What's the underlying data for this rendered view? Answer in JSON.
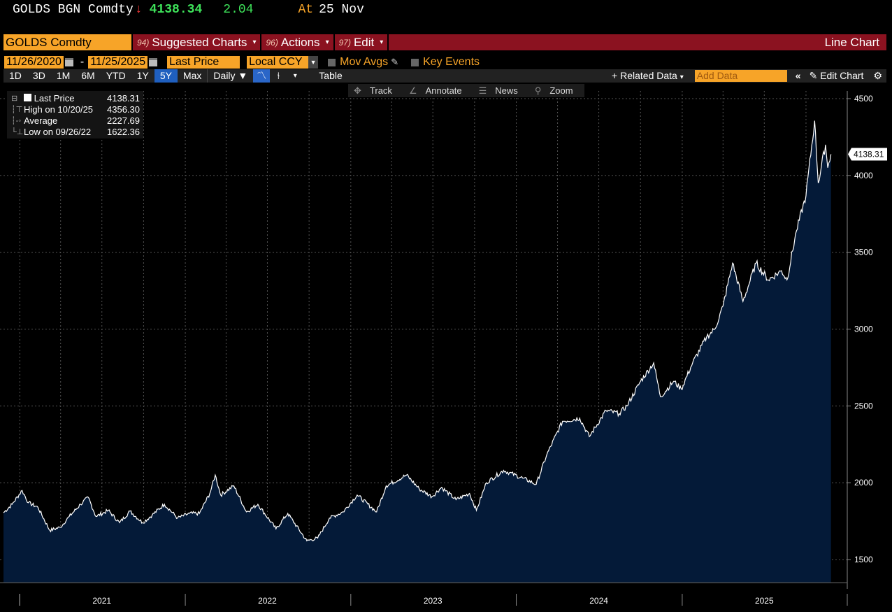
{
  "header": {
    "ticker": "GOLDS BGN Comdty",
    "arrow": "↓",
    "price": "4138.34",
    "change": "2.04",
    "at_label": "At",
    "date": "25 Nov"
  },
  "toolbar": {
    "security": "GOLDS Comdty",
    "menus": [
      {
        "num": "94)",
        "label": "Suggested Charts"
      },
      {
        "num": "96)",
        "label": "Actions"
      },
      {
        "num": "97)",
        "label": "Edit"
      }
    ],
    "chart_type": "Line Chart"
  },
  "range": {
    "start": "11/26/2020",
    "end": "11/25/2025",
    "field": "Last Price",
    "currency": "Local CCY",
    "mov_avgs": "Mov Avgs",
    "key_events": "Key Events"
  },
  "periods": [
    "1D",
    "3D",
    "1M",
    "6M",
    "YTD",
    "1Y",
    "5Y",
    "Max"
  ],
  "active_period": "5Y",
  "frequency": "Daily",
  "table_label": "Table",
  "related_data": "Related Data",
  "add_data_placeholder": "Add Data",
  "edit_chart": "Edit Chart",
  "tools": [
    "Track",
    "Annotate",
    "News",
    "Zoom"
  ],
  "legend": [
    {
      "label": "Last Price",
      "value": "4138.31"
    },
    {
      "label": "High on 10/20/25",
      "value": "4356.30"
    },
    {
      "label": "Average",
      "value": "2227.69"
    },
    {
      "label": "Low on 09/26/22",
      "value": "1622.36"
    }
  ],
  "colors": {
    "area": "#041a38",
    "line": "#ffffff",
    "grid": "#555555",
    "accent": "#f7a428",
    "bar": "#8b1220"
  },
  "chart_data": {
    "type": "area",
    "title": "",
    "xlabel": "",
    "ylabel": "",
    "x_ticks": [
      "2021",
      "2022",
      "2023",
      "2024",
      "2025"
    ],
    "y_ticks": [
      1500,
      2000,
      2500,
      3000,
      3500,
      4000,
      4500
    ],
    "ylim": [
      1350,
      4550
    ],
    "xlim": [
      "2020-11-26",
      "2025-12-31"
    ],
    "last_value_label": "4138.31",
    "grid": true,
    "series": [
      {
        "points": [
          [
            "2020-11-26",
            1805
          ],
          [
            "2020-12-15",
            1860
          ],
          [
            "2021-01-06",
            1950
          ],
          [
            "2021-01-20",
            1870
          ],
          [
            "2021-02-10",
            1840
          ],
          [
            "2021-03-08",
            1690
          ],
          [
            "2021-03-31",
            1710
          ],
          [
            "2021-04-20",
            1780
          ],
          [
            "2021-05-15",
            1860
          ],
          [
            "2021-06-01",
            1905
          ],
          [
            "2021-06-18",
            1780
          ],
          [
            "2021-07-15",
            1820
          ],
          [
            "2021-08-09",
            1740
          ],
          [
            "2021-09-01",
            1815
          ],
          [
            "2021-09-29",
            1740
          ],
          [
            "2021-10-20",
            1790
          ],
          [
            "2021-11-16",
            1860
          ],
          [
            "2021-12-15",
            1770
          ],
          [
            "2022-01-10",
            1800
          ],
          [
            "2022-02-01",
            1800
          ],
          [
            "2022-02-24",
            1930
          ],
          [
            "2022-03-08",
            2050
          ],
          [
            "2022-03-20",
            1920
          ],
          [
            "2022-04-18",
            1980
          ],
          [
            "2022-05-16",
            1810
          ],
          [
            "2022-06-10",
            1860
          ],
          [
            "2022-07-20",
            1700
          ],
          [
            "2022-08-15",
            1800
          ],
          [
            "2022-09-26",
            1622
          ],
          [
            "2022-10-20",
            1640
          ],
          [
            "2022-11-15",
            1770
          ],
          [
            "2022-12-15",
            1810
          ],
          [
            "2023-01-15",
            1920
          ],
          [
            "2023-02-27",
            1810
          ],
          [
            "2023-03-20",
            1980
          ],
          [
            "2023-05-04",
            2050
          ],
          [
            "2023-06-01",
            1960
          ],
          [
            "2023-06-29",
            1910
          ],
          [
            "2023-07-20",
            1970
          ],
          [
            "2023-08-21",
            1890
          ],
          [
            "2023-09-20",
            1930
          ],
          [
            "2023-10-05",
            1820
          ],
          [
            "2023-10-27",
            2000
          ],
          [
            "2023-12-04",
            2080
          ],
          [
            "2024-01-15",
            2030
          ],
          [
            "2024-02-14",
            1990
          ],
          [
            "2024-03-08",
            2180
          ],
          [
            "2024-04-12",
            2400
          ],
          [
            "2024-05-20",
            2420
          ],
          [
            "2024-06-10",
            2300
          ],
          [
            "2024-07-17",
            2470
          ],
          [
            "2024-08-15",
            2450
          ],
          [
            "2024-09-01",
            2500
          ],
          [
            "2024-10-01",
            2660
          ],
          [
            "2024-10-30",
            2780
          ],
          [
            "2024-11-14",
            2560
          ],
          [
            "2024-12-13",
            2660
          ],
          [
            "2024-12-30",
            2610
          ],
          [
            "2025-01-24",
            2780
          ],
          [
            "2025-02-24",
            2950
          ],
          [
            "2025-03-14",
            3000
          ],
          [
            "2025-04-01",
            3150
          ],
          [
            "2025-04-22",
            3430
          ],
          [
            "2025-05-15",
            3180
          ],
          [
            "2025-06-13",
            3430
          ],
          [
            "2025-07-10",
            3320
          ],
          [
            "2025-08-08",
            3380
          ],
          [
            "2025-08-20",
            3320
          ],
          [
            "2025-09-10",
            3640
          ],
          [
            "2025-10-01",
            3870
          ],
          [
            "2025-10-20",
            4356
          ],
          [
            "2025-10-28",
            3950
          ],
          [
            "2025-11-13",
            4200
          ],
          [
            "2025-11-18",
            4050
          ],
          [
            "2025-11-25",
            4138
          ]
        ]
      }
    ]
  }
}
